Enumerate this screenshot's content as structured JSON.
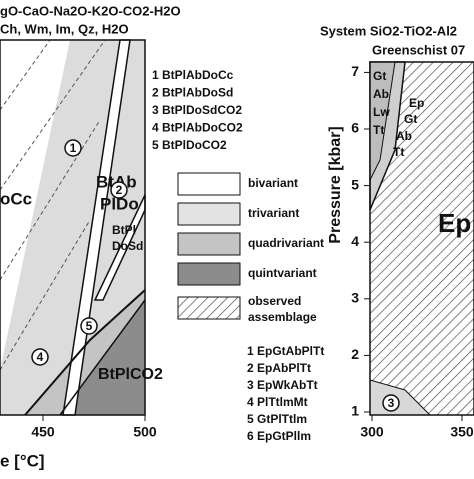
{
  "left_panel": {
    "title_lines": [
      "gO-CaO-Na2O-K2O-CO2-H2O",
      "Ch, Wm, Im, Qz, H2O"
    ],
    "field_labels": [
      "BtAb",
      "PlDo",
      "oCc",
      "BtPl",
      "DoSd",
      "BtPlCO2"
    ],
    "reaction_markers": [
      "1",
      "2",
      "4",
      "5"
    ],
    "x_axis": {
      "label": "e [°C]",
      "ticks": [
        450,
        500
      ]
    }
  },
  "reaction_list_left": [
    "1 BtPlAbDoCc",
    "2 BtPlAbDoSd",
    "3 BtPlDoSdCO2",
    "4 BtPlAbDoCO2",
    "5 BtPlDoCO2"
  ],
  "legend": [
    "bivariant",
    "trivariant",
    "quadrivariant",
    "quintvariant",
    "observed",
    "assemblage"
  ],
  "reaction_list_right": [
    "1 EpGtAbPlTt",
    "2 EpAbPlTt",
    "3 EpWkAbTt",
    "4 PlTtlmMt",
    "5 GtPlTtlm",
    "6 EpGtPllm"
  ],
  "right_panel": {
    "title_lines": [
      "System SiO2-TiO2-Al2",
      "Greenschist 07"
    ],
    "field_labels": [
      "Gt",
      "Ab",
      "Lw",
      "Tt",
      "Ep",
      "Gt",
      "Ab",
      "Tt",
      "Ep"
    ],
    "reaction_markers": [
      "3"
    ],
    "y_axis": {
      "label": "Pressure [kbar]",
      "ticks": [
        1,
        2,
        3,
        4,
        5,
        6,
        7
      ]
    },
    "x_axis": {
      "ticks": [
        300,
        350
      ]
    }
  }
}
